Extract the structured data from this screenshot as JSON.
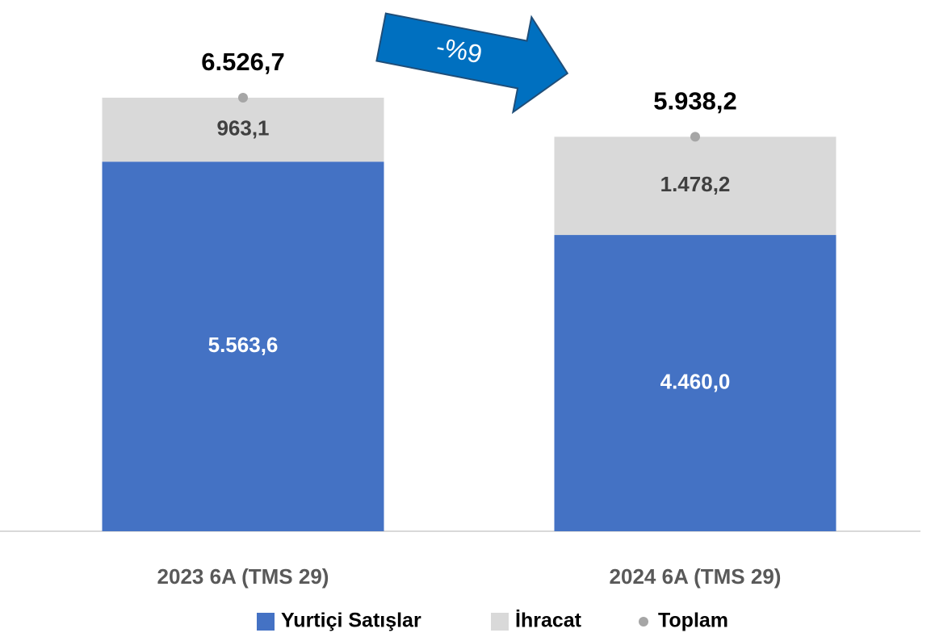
{
  "chart_data": {
    "type": "stacked_bar",
    "categories": [
      "2023 6A (TMS 29)",
      "2024 6A (TMS 29)"
    ],
    "series": [
      {
        "name": "Yurtiçi Satışlar",
        "color": "#4472c4",
        "kind": "stack",
        "values": [
          5563.6,
          4460.0
        ],
        "value_labels": [
          "5.563,6",
          "4.460,0"
        ]
      },
      {
        "name": "İhracat",
        "color": "#d9d9d9",
        "kind": "stack",
        "values": [
          963.1,
          1478.2
        ],
        "value_labels": [
          "963,1",
          "1.478,2"
        ]
      },
      {
        "name": "Toplam",
        "color": "#a6a6a6",
        "kind": "point",
        "values": [
          6526.7,
          5938.2
        ],
        "value_labels": [
          "6.526,7",
          "5.938,2"
        ]
      }
    ],
    "annotation": "-%9",
    "legend": "bottom"
  }
}
